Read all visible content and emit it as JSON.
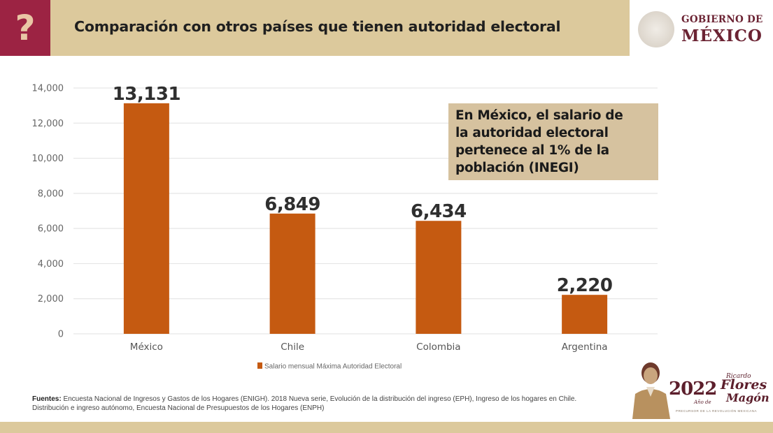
{
  "header": {
    "icon": "question-mark-icon",
    "icon_glyph": "?",
    "title": "Comparación con otros países que tienen autoridad electoral",
    "logo_line1": "GOBIERNO DE",
    "logo_line2": "MÉXICO"
  },
  "colors": {
    "header_bg": "#dcc99c",
    "accent_red": "#9c2343",
    "bar": "#c55a11",
    "callout_bg": "#d6c29f",
    "label_text": "#333333",
    "grid": "#e6e6e6"
  },
  "callout": {
    "lines": [
      "En México, el salario de",
      "la autoridad electoral",
      "pertenece al 1% de la",
      "población (INEGI)"
    ]
  },
  "chart_data": {
    "type": "bar",
    "title": "",
    "xlabel": "",
    "ylabel": "",
    "categories": [
      "México",
      "Chile",
      "Colombia",
      "Argentina"
    ],
    "series": [
      {
        "name": "Salario mensual Máxima Autoridad Electoral",
        "values": [
          13131,
          6849,
          6434,
          2220
        ],
        "data_labels": [
          "13,131",
          "6,849",
          "6,434",
          "2,220"
        ]
      }
    ],
    "ylim": [
      0,
      14000
    ],
    "yticks": [
      0,
      2000,
      4000,
      6000,
      8000,
      10000,
      12000,
      14000
    ],
    "ytick_labels": [
      "0",
      "2,000",
      "4,000",
      "6,000",
      "8,000",
      "10,000",
      "12,000",
      "14,000"
    ],
    "grid": true,
    "legend": {
      "position": "bottom",
      "entries": [
        "Salario mensual Máxima Autoridad Electoral"
      ]
    }
  },
  "sources": {
    "label": "Fuentes:",
    "text": " Encuesta Nacional de Ingresos y Gastos de los Hogares (ENIGH). 2018 Nueva serie, Evolución de la distribución del ingreso (EPH), Ingreso de los hogares en Chile. Distribución e ingreso autónomo, Encuesta Nacional de Presupuestos de los Hogares (ENPH)"
  },
  "footer_logo": {
    "year": "2022",
    "anio_de": "Año de",
    "name_first": "Ricardo",
    "name_mid": "Flores",
    "name_last": "Magón",
    "subtitle": "PRECURSOR DE LA REVOLUCIÓN MEXICANA"
  }
}
